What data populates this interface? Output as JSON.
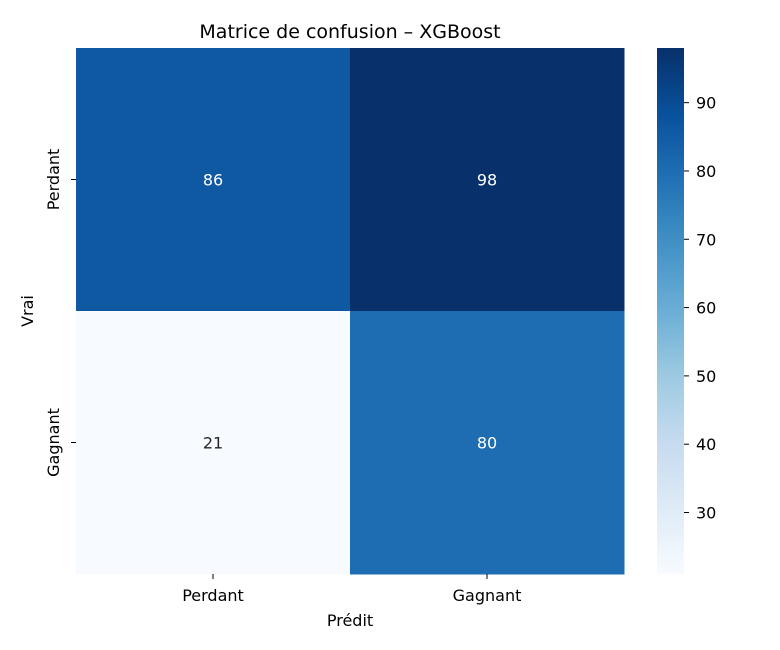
{
  "chart_data": {
    "type": "heatmap",
    "title": "Matrice de confusion – XGBoost",
    "xlabel": "Prédit",
    "ylabel": "Vrai",
    "x_categories": [
      "Perdant",
      "Gagnant"
    ],
    "y_categories": [
      "Perdant",
      "Gagnant"
    ],
    "values": [
      [
        86,
        98
      ],
      [
        21,
        80
      ]
    ],
    "colorbar": {
      "min": 21,
      "max": 98,
      "ticks": [
        30,
        40,
        50,
        60,
        70,
        80,
        90
      ]
    },
    "colormap": [
      "#f7fbff",
      "#deebf7",
      "#c6dbef",
      "#9ecae1",
      "#6baed6",
      "#4292c6",
      "#2171b5",
      "#08519c",
      "#08306b"
    ],
    "grid": false,
    "legend": "colorbar-right"
  }
}
